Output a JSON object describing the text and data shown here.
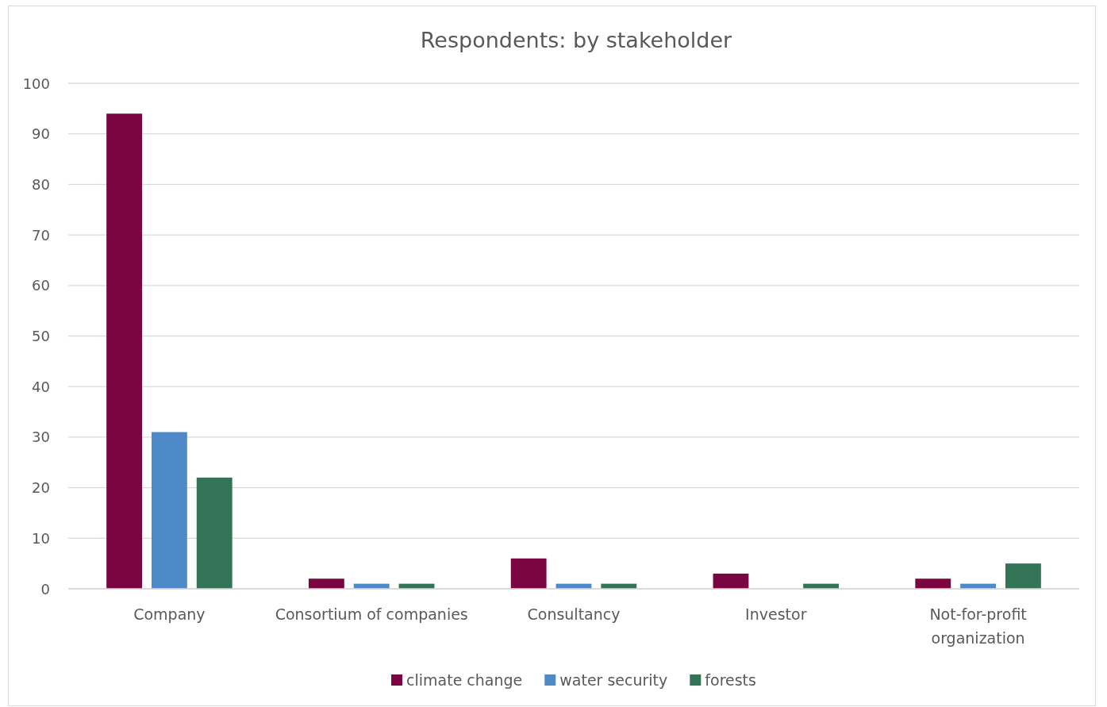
{
  "chart_data": {
    "type": "bar",
    "title": "Respondents: by stakeholder",
    "categories": [
      "Company",
      "Consortium of companies",
      "Consultancy",
      "Investor",
      "Not-for-profit organization"
    ],
    "series": [
      {
        "name": "climate change",
        "color": "#7b0540",
        "values": [
          94,
          2,
          6,
          3,
          2
        ]
      },
      {
        "name": "water security",
        "color": "#4e8ac8",
        "values": [
          31,
          1,
          1,
          0,
          1
        ]
      },
      {
        "name": "forests",
        "color": "#337356",
        "values": [
          22,
          1,
          1,
          1,
          5
        ]
      }
    ],
    "ylim": [
      0,
      100
    ],
    "yticks": [
      0,
      10,
      20,
      30,
      40,
      50,
      60,
      70,
      80,
      90,
      100
    ],
    "grid": "y",
    "legend": "bottom"
  }
}
